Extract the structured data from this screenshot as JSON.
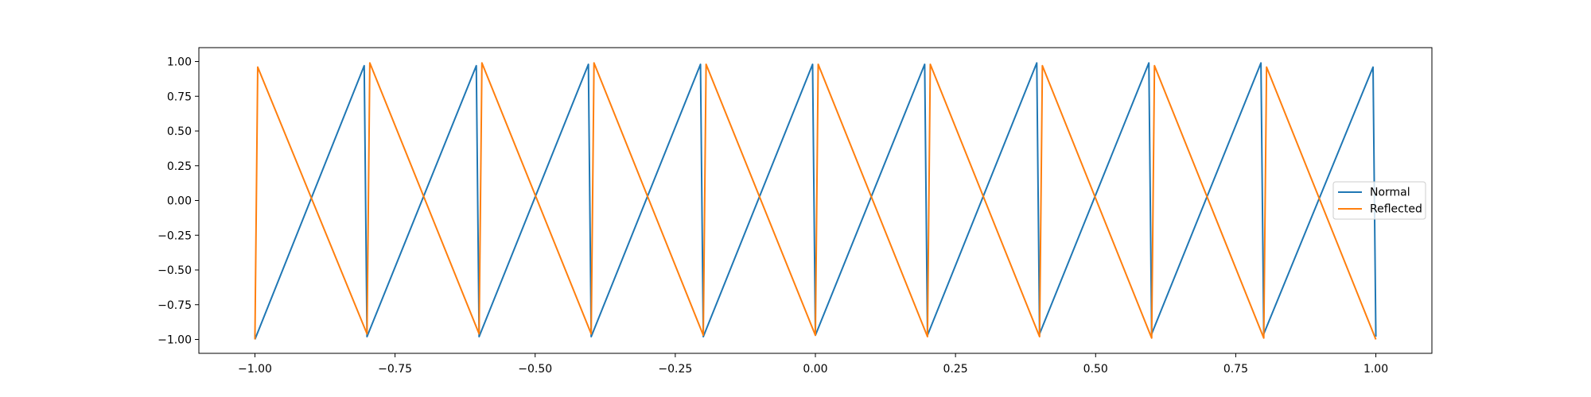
{
  "chart_data": {
    "type": "line",
    "title": "",
    "xlabel": "",
    "ylabel": "",
    "xlim": [
      -1.1,
      1.1
    ],
    "ylim": [
      -1.1,
      1.1
    ],
    "grid": false,
    "legend_position": "center-right",
    "x_ticks": [
      {
        "value": -1.0,
        "label": "−1.00"
      },
      {
        "value": -0.75,
        "label": "−0.75"
      },
      {
        "value": -0.5,
        "label": "−0.50"
      },
      {
        "value": -0.25,
        "label": "−0.25"
      },
      {
        "value": 0.0,
        "label": "0.00"
      },
      {
        "value": 0.25,
        "label": "0.25"
      },
      {
        "value": 0.5,
        "label": "0.50"
      },
      {
        "value": 0.75,
        "label": "0.75"
      },
      {
        "value": 1.0,
        "label": "1.00"
      }
    ],
    "y_ticks": [
      {
        "value": 1.0,
        "label": "1.00"
      },
      {
        "value": 0.75,
        "label": "0.75"
      },
      {
        "value": 0.5,
        "label": "0.50"
      },
      {
        "value": 0.25,
        "label": "0.25"
      },
      {
        "value": 0.0,
        "label": "0.00"
      },
      {
        "value": -0.25,
        "label": "−0.25"
      },
      {
        "value": -0.5,
        "label": "−0.50"
      },
      {
        "value": -0.75,
        "label": "−0.75"
      },
      {
        "value": -1.0,
        "label": "−1.00"
      }
    ],
    "series": [
      {
        "name": "Normal",
        "color": "#1f77b4",
        "x": [
          -1.0,
          -0.805,
          -0.8,
          -0.605,
          -0.6,
          -0.405,
          -0.4,
          -0.205,
          -0.2,
          -0.005,
          0.0,
          0.195,
          0.2,
          0.395,
          0.4,
          0.595,
          0.6,
          0.795,
          0.8,
          0.995,
          1.0
        ],
        "y": [
          -1.0,
          0.97,
          -0.98,
          0.97,
          -0.98,
          0.98,
          -0.98,
          0.98,
          -0.98,
          0.98,
          -0.97,
          0.98,
          -0.97,
          0.99,
          -0.96,
          0.99,
          -0.96,
          0.99,
          -0.96,
          0.96,
          -0.98
        ]
      },
      {
        "name": "Reflected",
        "color": "#ff7f0e",
        "x": [
          -1.0,
          -0.995,
          -0.8,
          -0.795,
          -0.6,
          -0.595,
          -0.4,
          -0.395,
          -0.2,
          -0.195,
          0.0,
          0.005,
          0.2,
          0.205,
          0.4,
          0.405,
          0.6,
          0.605,
          0.8,
          0.805,
          1.0
        ],
        "y": [
          -1.0,
          0.96,
          -0.96,
          0.99,
          -0.96,
          0.99,
          -0.96,
          0.99,
          -0.97,
          0.98,
          -0.97,
          0.98,
          -0.98,
          0.98,
          -0.98,
          0.97,
          -0.99,
          0.97,
          -0.99,
          0.96,
          -1.0
        ]
      }
    ]
  }
}
